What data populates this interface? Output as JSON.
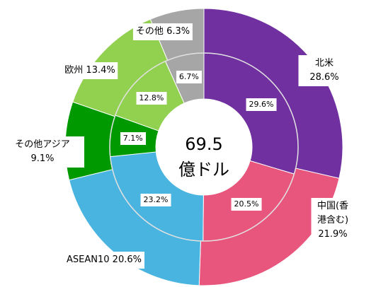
{
  "chart_data": {
    "type": "donut",
    "categories": [
      "北米",
      "中国(香港含む)",
      "ASEAN10",
      "その他アジア",
      "欧州",
      "その他"
    ],
    "colors": [
      "#7030a0",
      "#e8557d",
      "#4ab4e0",
      "#009a00",
      "#92d050",
      "#a6a6a6"
    ],
    "series": [
      {
        "values": [
          28.6,
          21.9,
          20.6,
          9.1,
          13.4,
          6.3
        ],
        "value_labels": [
          "28.6%",
          "21.9%",
          "20.6%",
          "9.1%",
          "13.4%",
          "6.3%"
        ]
      },
      {
        "values": [
          29.6,
          20.5,
          23.2,
          7.1,
          12.8,
          6.7
        ],
        "value_labels": [
          "29.6%",
          "20.5%",
          "23.2%",
          "7.1%",
          "12.8%",
          "6.7%"
        ]
      }
    ],
    "center": {
      "value": 69.5,
      "label": "億ドル"
    }
  }
}
